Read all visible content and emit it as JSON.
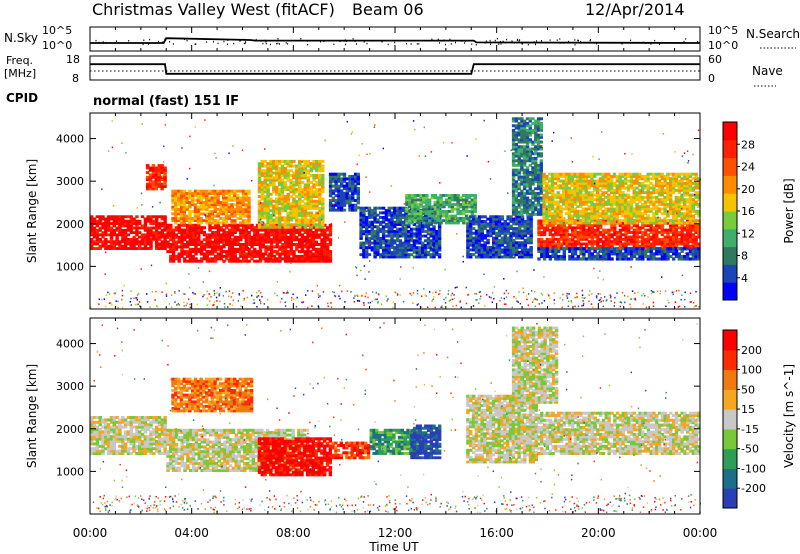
{
  "header": {
    "station": "Christmas Valley West (fitACF)",
    "beam": "Beam 06",
    "date": "12/Apr/2014"
  },
  "left_labels": {
    "nsky": "N.Sky",
    "freq_line1": "Freq.",
    "freq_line2": "[MHz]",
    "cpid": "CPID"
  },
  "right_labels": {
    "nsearch": "N.Search",
    "nave": "Nave"
  },
  "cpid_text": "normal (fast) 151 IF",
  "colors": {
    "power_scale": [
      "#0000ff",
      "#1a44b8",
      "#2f7a5e",
      "#3fae6a",
      "#76cc3d",
      "#f5c400",
      "#ff8c00",
      "#ff5000",
      "#ff2000",
      "#ff0000"
    ],
    "velocity_scale": [
      "#2a3fb5",
      "#1c6e8a",
      "#2c9e55",
      "#78c83a",
      "#c8c8c8",
      "#f5a623",
      "#f07a10",
      "#ff2a00",
      "#ff0000"
    ]
  },
  "chart_data": [
    {
      "type": "line",
      "panel": "noise",
      "ylabel": "N.Sky",
      "y_ticks_left": [
        "10^5",
        "10^0"
      ],
      "y_ticks_right": [
        "10^5",
        "10^0"
      ],
      "right_label": "N.Search",
      "x": [
        0,
        2.9,
        3.0,
        6.3,
        6.5,
        15.1,
        15.2,
        24
      ],
      "series": [
        {
          "values": [
            1.0,
            1.0,
            1.8,
            1.5,
            1.4,
            1.4,
            1.1,
            1.0
          ]
        }
      ]
    },
    {
      "type": "line",
      "panel": "frequency",
      "ylabel": "Freq. [MHz]",
      "y_ticks_left": [
        "18",
        "8"
      ],
      "y_ticks_right": [
        "60",
        "0"
      ],
      "right_label": "Nave",
      "x": [
        0,
        2.95,
        3.0,
        6.3,
        6.5,
        15.0,
        15.1,
        24
      ],
      "series": [
        {
          "values": [
            14.6,
            14.6,
            10.6,
            10.6,
            10.6,
            10.6,
            14.6,
            14.6
          ]
        }
      ]
    },
    {
      "type": "heatmap",
      "panel": "power",
      "xlabel": "",
      "ylabel": "Slant Range [km]",
      "xlim": [
        0,
        24
      ],
      "ylim": [
        0,
        4600
      ],
      "y_ticks": [
        1000,
        2000,
        3000,
        4000
      ],
      "colorbar_label": "Power [dB]",
      "colorbar_ticks": [
        "28",
        "24",
        "20",
        "16",
        "12",
        "8",
        "4"
      ],
      "bands": [
        {
          "t0": 0,
          "t1": 3.0,
          "r0": 1400,
          "r1": 2200,
          "level": 9
        },
        {
          "t0": 2.2,
          "t1": 3.0,
          "r0": 2800,
          "r1": 3400,
          "level": 8
        },
        {
          "t0": 3.0,
          "t1": 9.5,
          "r0": 1100,
          "r1": 2000,
          "level": 9
        },
        {
          "t0": 3.2,
          "t1": 6.3,
          "r0": 2000,
          "r1": 2800,
          "level": 6
        },
        {
          "t0": 6.6,
          "t1": 9.2,
          "r0": 1900,
          "r1": 3500,
          "level": 5
        },
        {
          "t0": 9.4,
          "t1": 10.6,
          "r0": 2300,
          "r1": 3200,
          "level": 1
        },
        {
          "t0": 10.6,
          "t1": 13.8,
          "r0": 1200,
          "r1": 2400,
          "level": 1
        },
        {
          "t0": 12.4,
          "t1": 15.2,
          "r0": 2000,
          "r1": 2700,
          "level": 3
        },
        {
          "t0": 14.8,
          "t1": 17.4,
          "r0": 1200,
          "r1": 2200,
          "level": 1
        },
        {
          "t0": 16.6,
          "t1": 17.8,
          "r0": 2200,
          "r1": 4500,
          "level": 2
        },
        {
          "t0": 17.6,
          "t1": 24,
          "r0": 1400,
          "r1": 2100,
          "level": 8
        },
        {
          "t0": 17.8,
          "t1": 24,
          "r0": 2000,
          "r1": 3200,
          "level": 5
        },
        {
          "t0": 17.6,
          "t1": 24,
          "r0": 1150,
          "r1": 1450,
          "level": 1
        }
      ]
    },
    {
      "type": "heatmap",
      "panel": "velocity",
      "xlabel": "Time UT",
      "ylabel": "Slant Range [km]",
      "xlim": [
        0,
        24
      ],
      "ylim": [
        0,
        4600
      ],
      "x_ticks": [
        "00:00",
        "04:00",
        "08:00",
        "12:00",
        "16:00",
        "20:00",
        "00:00"
      ],
      "y_ticks": [
        1000,
        2000,
        3000,
        4000
      ],
      "colorbar_label": "Velocity [m s^-1]",
      "colorbar_ticks": [
        "200",
        "100",
        "50",
        "15",
        "-15",
        "-50",
        "-100",
        "-200"
      ],
      "bands": [
        {
          "t0": 0,
          "t1": 3.0,
          "r0": 1400,
          "r1": 2300,
          "level": 4
        },
        {
          "t0": 3.0,
          "t1": 8.6,
          "r0": 1000,
          "r1": 2000,
          "level": 4
        },
        {
          "t0": 3.2,
          "t1": 6.4,
          "r0": 2400,
          "r1": 3200,
          "level": 6
        },
        {
          "t0": 6.6,
          "t1": 9.5,
          "r0": 900,
          "r1": 1800,
          "level": 8
        },
        {
          "t0": 9.5,
          "t1": 11.0,
          "r0": 1300,
          "r1": 1700,
          "level": 7
        },
        {
          "t0": 11.0,
          "t1": 13.0,
          "r0": 1400,
          "r1": 2000,
          "level": 2
        },
        {
          "t0": 12.6,
          "t1": 13.8,
          "r0": 1300,
          "r1": 2100,
          "level": 0
        },
        {
          "t0": 14.8,
          "t1": 17.6,
          "r0": 1200,
          "r1": 2800,
          "level": 4
        },
        {
          "t0": 16.6,
          "t1": 18.4,
          "r0": 2600,
          "r1": 4400,
          "level": 4
        },
        {
          "t0": 17.6,
          "t1": 24,
          "r0": 1400,
          "r1": 2400,
          "level": 4
        }
      ]
    }
  ]
}
